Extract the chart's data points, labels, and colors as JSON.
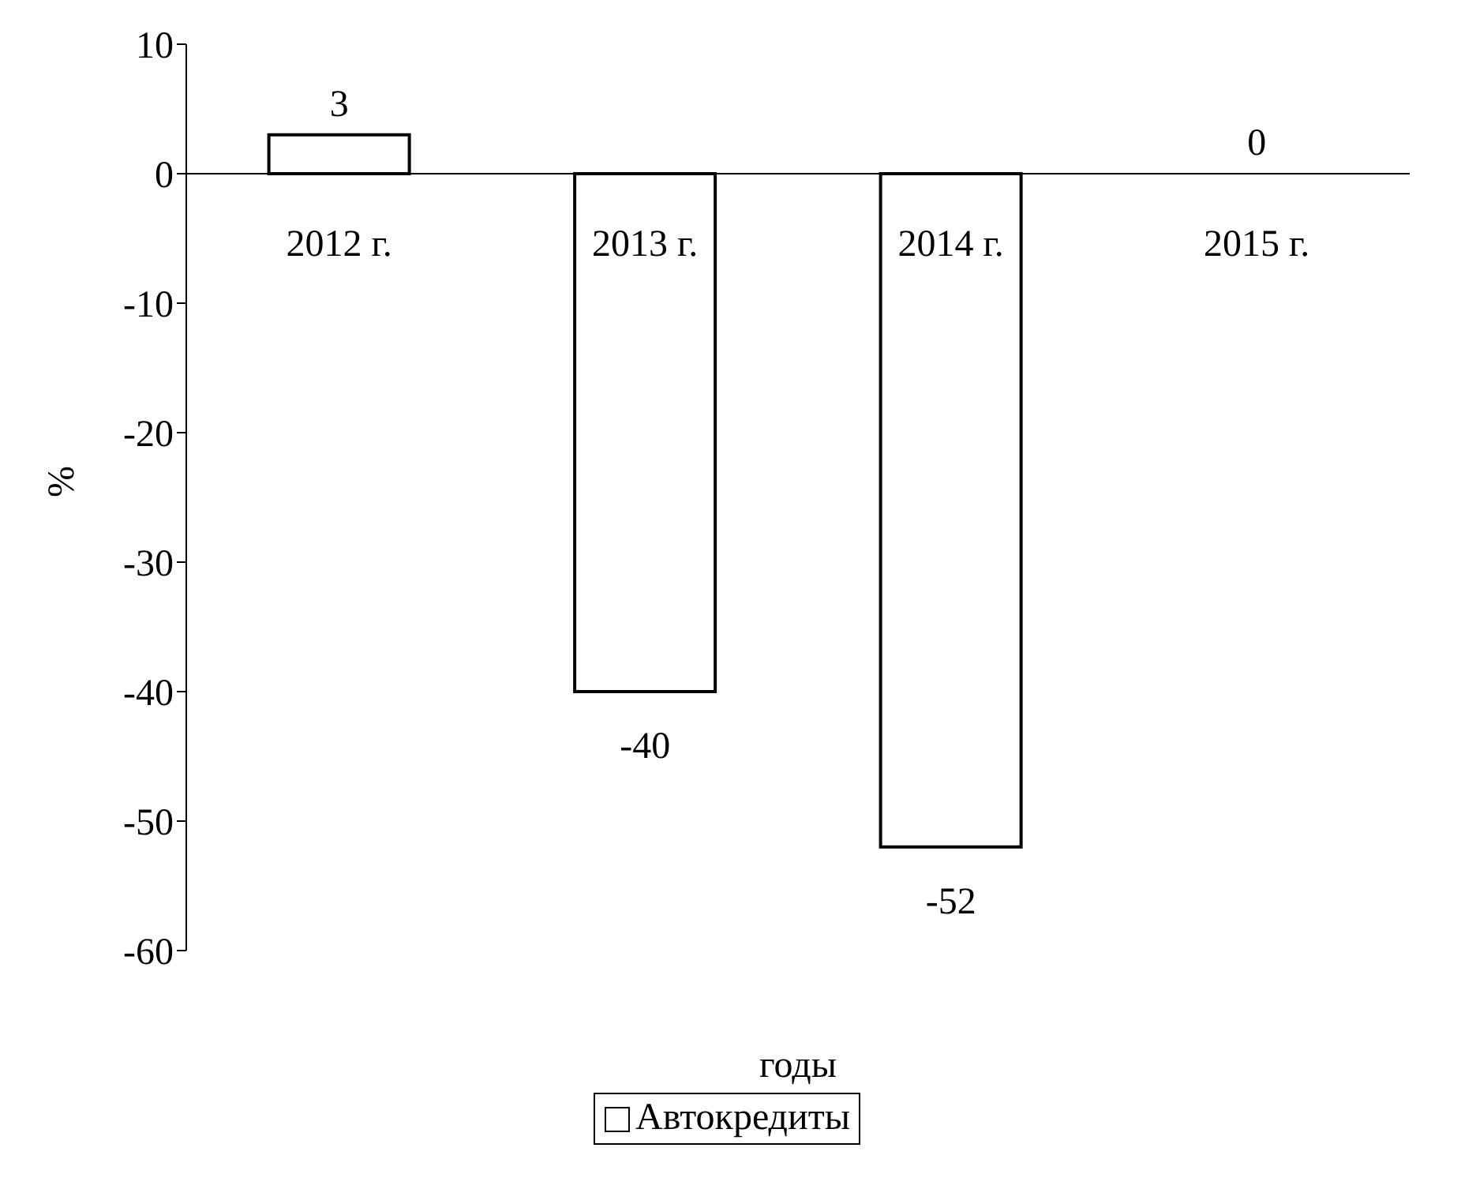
{
  "chart_data": {
    "type": "bar",
    "xlabel": "годы",
    "ylabel": "%",
    "categories": [
      "2012 г.",
      "2013 г.",
      "2014 г.",
      "2015 г."
    ],
    "series": [
      {
        "name": "Автокредиты",
        "color": "#ffffff",
        "values": [
          3,
          -40,
          -52,
          0
        ]
      }
    ],
    "ylim": [
      -60,
      10
    ],
    "yticks": [
      -60,
      -50,
      -40,
      -30,
      -20,
      -10,
      0,
      10
    ],
    "data_labels": true,
    "grid": false,
    "legend": "bottom"
  }
}
